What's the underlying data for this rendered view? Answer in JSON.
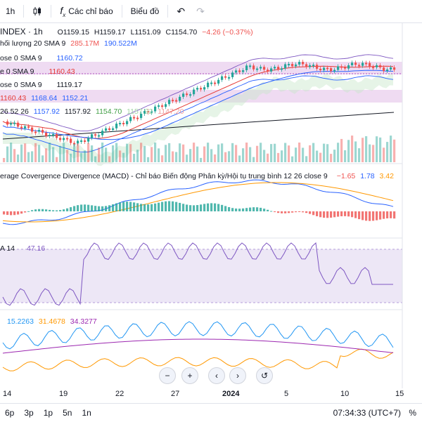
{
  "toolbar": {
    "interval": "1h",
    "indicators_label": "Các chỉ báo",
    "chart_type_label": "Biểu đồ",
    "undo_icon": "undo-icon",
    "redo_icon": "redo-icon"
  },
  "symbol": {
    "name": "INDEX · 1h",
    "open": "O1159.15",
    "high": "H1159.17",
    "low": "L1151.09",
    "close": "C1154.70",
    "change": "−4.26 (−0.37%)"
  },
  "legends": {
    "volume": {
      "label": "hối lượng 20 SMA 9",
      "v1": "285.17M",
      "v2": "190.522M"
    },
    "sma_a": {
      "label": "ose 0 SMA 9",
      "value": "1160.72"
    },
    "sma_b": {
      "label": "e 0 SMA 9",
      "value": "1160.43"
    },
    "sma_c": {
      "label": "ose 0 SMA 9",
      "value": "1119.17"
    },
    "bb": {
      "v1": "1160.43",
      "v2": "1168.64",
      "v3": "1152.21"
    },
    "ichimoku": {
      "v0": "26 52 26",
      "v1": "1157.92",
      "v2": "1157.92",
      "v3": "1154.70",
      "v4": "1157.92",
      "v5": "1147.20"
    },
    "macd": {
      "label": "erage Covergence Divergence (MACD) - Chỉ báo Biến động Phân kỳ/Hội tụ trung bình 12 26 close 9",
      "v1": "−1.65",
      "v2": "1.78",
      "v3": "3.42"
    },
    "rsi": {
      "label": "A 14",
      "value": "47.16"
    },
    "dmi": {
      "v1": "15.2263",
      "v2": "31.4678",
      "v3": "34.3277"
    }
  },
  "xaxis": {
    "labels": [
      "14",
      "19",
      "22",
      "27",
      "2024",
      "5",
      "10",
      "15"
    ]
  },
  "bottombar": {
    "ranges": [
      "6p",
      "3p",
      "1p",
      "5n",
      "1n"
    ],
    "clock": "07:34:33 (UTC+7)",
    "percent": "%"
  },
  "colors": {
    "up": "#26a69a",
    "down": "#ef5350",
    "purple_band": "#e1bee7",
    "macd_line": "#2962ff",
    "signal_line": "#ff9800"
  }
}
